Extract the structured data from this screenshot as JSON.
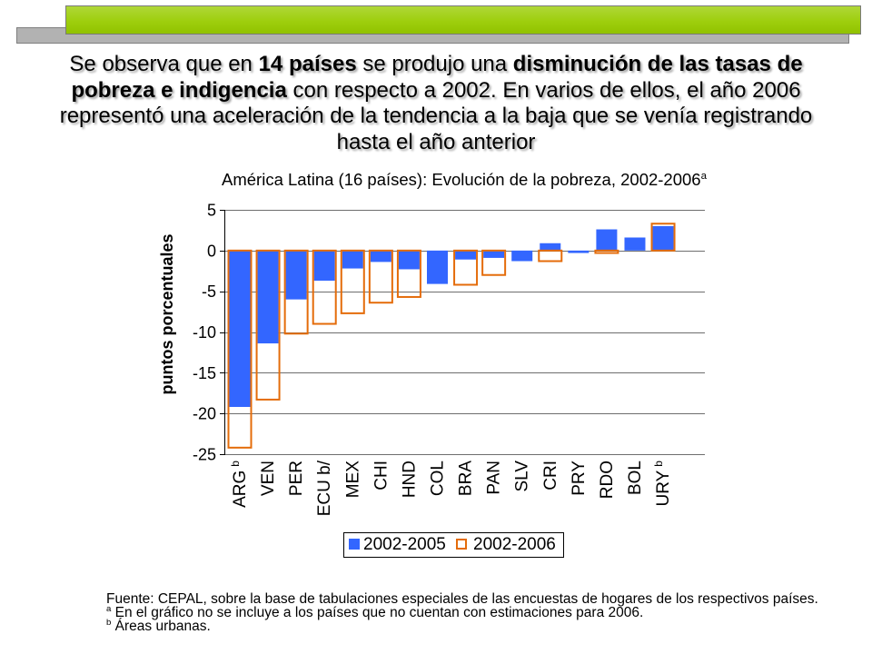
{
  "colors": {
    "header_green": "#99cc00",
    "header_gray": "#b2b2b2"
  },
  "headline": {
    "lines": [
      [
        "Se observa que en ",
        "14 países",
        " se produjo una ",
        "disminución de las tasas de"
      ],
      [
        "pobreza e indigencia",
        " con respecto a 2002. En varios de ellos, el año 2006"
      ],
      [
        "representó una aceleración de la tendencia a la baja que se venía registrando"
      ],
      [
        "hasta el año anterior"
      ]
    ]
  },
  "chart_data": {
    "type": "bar",
    "title": "América Latina (16 países): Evolución de la pobreza, 2002-2006",
    "title_sup": "a",
    "xlabel": "",
    "ylabel": "puntos porcentuales",
    "categories": [
      "ARG",
      "VEN",
      "PER",
      "ECU b/",
      "MEX",
      "CHI",
      "HND",
      "COL",
      "BRA",
      "PAN",
      "SLV",
      "CRI",
      "PRY",
      "RDO",
      "BOL",
      "URY"
    ],
    "category_superscripts": [
      "b",
      "",
      "",
      "",
      "",
      "",
      "",
      "",
      "",
      "",
      "",
      "",
      "",
      "",
      "",
      "b"
    ],
    "ylim": [
      -25,
      5
    ],
    "y_ticks": [
      5,
      0,
      -5,
      -10,
      -15,
      -20,
      -25
    ],
    "grid": true,
    "legend_position": "bottom",
    "series": [
      {
        "name": "2002-2005",
        "style": "filled",
        "color": "#3366ff",
        "values": [
          -19.2,
          -11.4,
          -6.0,
          -3.7,
          -2.2,
          -1.4,
          -2.3,
          -4.1,
          -1.1,
          -0.9,
          -1.3,
          0.9,
          -0.3,
          2.6,
          1.6,
          3.0
        ]
      },
      {
        "name": "2002-2006",
        "style": "outline",
        "color": "#e46c0a",
        "values": [
          -24.2,
          -18.3,
          -10.2,
          -9.0,
          -7.7,
          -6.4,
          -5.7,
          null,
          -4.2,
          -3.0,
          null,
          -1.3,
          null,
          -0.3,
          null,
          3.3
        ]
      }
    ]
  },
  "footnotes": {
    "source": "Fuente: CEPAL, sobre la base de tabulaciones especiales de las encuestas de hogares de los respectivos países.",
    "note_a": {
      "mark": "a",
      "text": "En el gráfico no se incluye a los países que no cuentan con estimaciones para 2006."
    },
    "note_b": {
      "mark": "b",
      "text": "Áreas urbanas."
    }
  }
}
